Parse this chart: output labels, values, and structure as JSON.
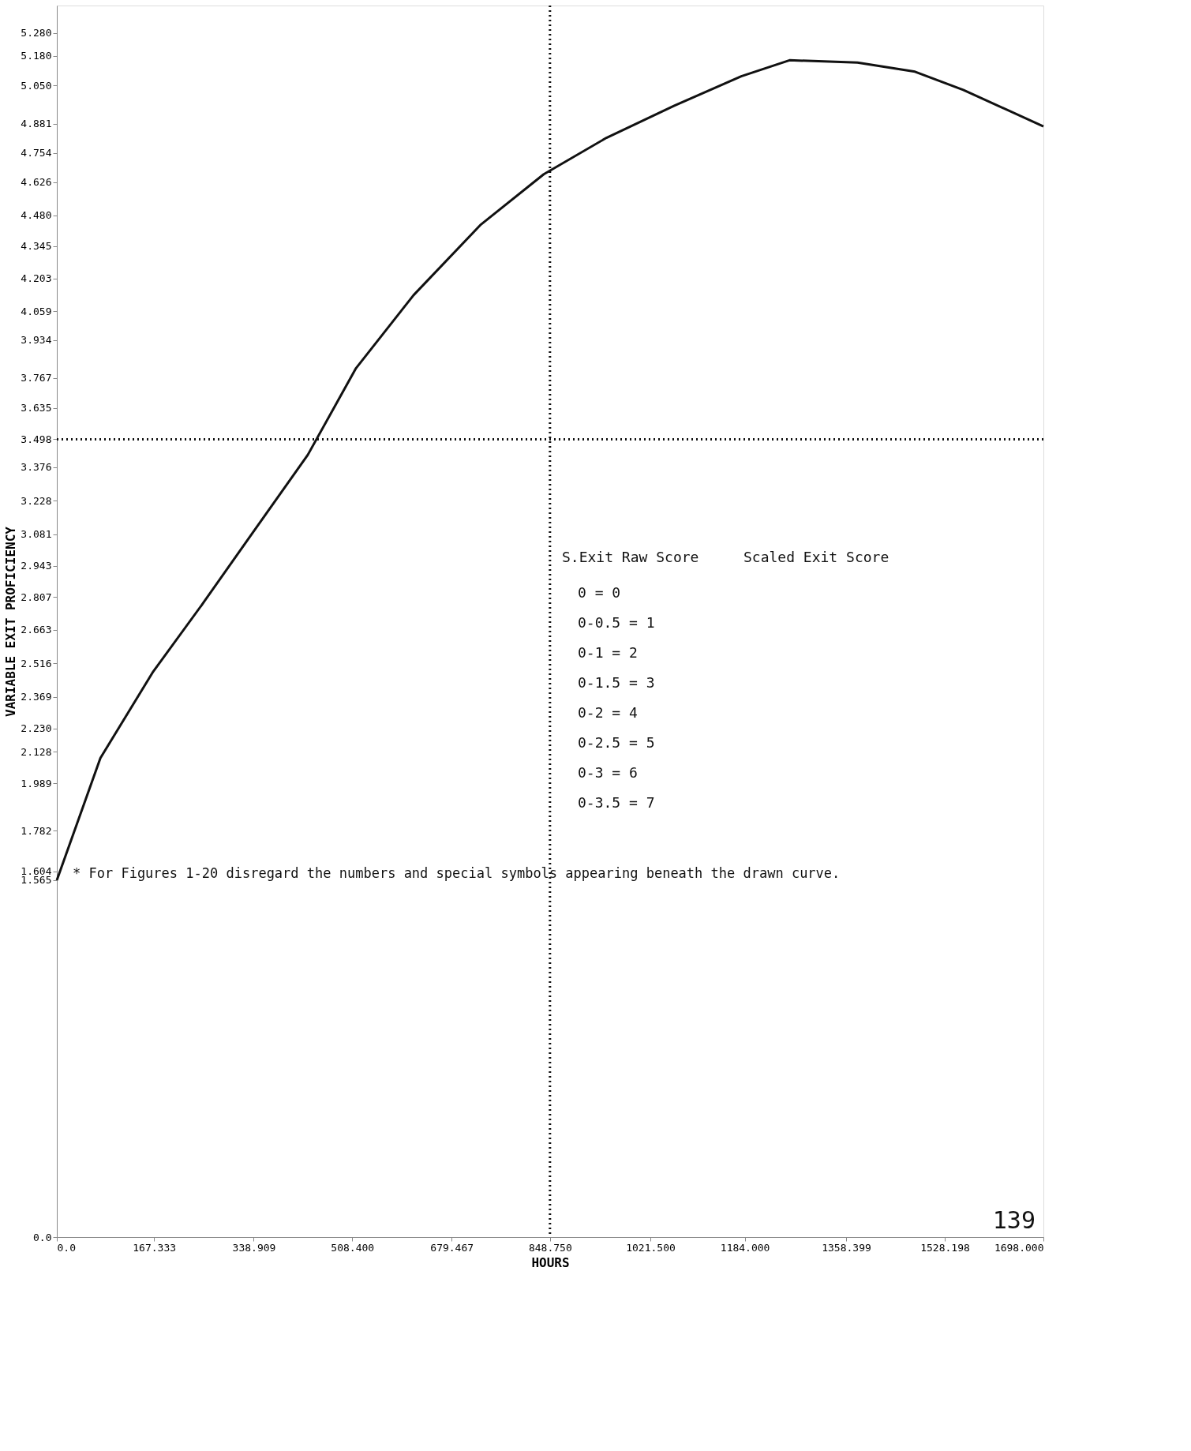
{
  "chart_data": {
    "type": "line",
    "xlabel": "HOURS",
    "ylabel": "VARIABLE EXIT PROFICIENCY",
    "x": [
      0,
      75,
      166,
      249,
      332,
      432,
      515,
      614,
      730,
      838,
      946,
      1062,
      1178,
      1261,
      1378,
      1477,
      1560,
      1698
    ],
    "series": [
      {
        "color": "#111111",
        "values": [
          1.565,
          2.1,
          2.48,
          2.77,
          3.07,
          3.43,
          3.81,
          4.13,
          4.44,
          4.66,
          4.82,
          4.96,
          5.09,
          5.16,
          5.15,
          5.11,
          5.03,
          4.87
        ]
      }
    ],
    "xlim": [
      0,
      1698
    ],
    "xticks": [
      {
        "value": 0,
        "label": "0.0"
      },
      {
        "value": 167.333,
        "label": "167.333"
      },
      {
        "value": 338.909,
        "label": "338.909"
      },
      {
        "value": 508.4,
        "label": "508.400"
      },
      {
        "value": 679.467,
        "label": "679.467"
      },
      {
        "value": 848.75,
        "label": "848.750"
      },
      {
        "value": 1021.5,
        "label": "1021.500"
      },
      {
        "value": 1184,
        "label": "1184.000"
      },
      {
        "value": 1358.399,
        "label": "1358.399"
      },
      {
        "value": 1528.198,
        "label": "1528.198"
      },
      {
        "value": 1698,
        "label": "1698.000"
      }
    ],
    "ylim": [
      0,
      5.4
    ],
    "yticks": [
      {
        "value": 0,
        "label": "0.0"
      },
      1.565,
      1.604,
      1.782,
      1.989,
      2.128,
      {
        "value": 2.23,
        "label": "2.230"
      },
      2.369,
      2.516,
      2.663,
      2.807,
      2.943,
      3.081,
      3.228,
      3.376,
      3.498,
      3.635,
      3.767,
      3.934,
      4.059,
      4.203,
      4.345,
      {
        "value": 4.48,
        "label": "4.480"
      },
      4.626,
      4.754,
      4.881,
      {
        "value": 5.05,
        "label": "5.050"
      },
      {
        "value": 5.18,
        "label": "5.180"
      },
      {
        "value": 5.28,
        "label": "5.280"
      }
    ],
    "ref_lines": [
      {
        "axis": "y",
        "value": 3.498,
        "line_style": "dotted"
      },
      {
        "axis": "x",
        "value": 848.75,
        "line_style": "dotted"
      }
    ],
    "grid": false,
    "marker": "none",
    "line_style": "solid",
    "annotations": [
      "S.Exit Raw Score",
      "Scaled Exit Score",
      "0 = 0",
      "0-0.5 = 1",
      "0-1 = 2",
      "0-1.5 = 3",
      "0-2 = 4",
      "0-2.5 = 5",
      "0-3 = 6",
      "0-3.5 = 7",
      "* For Figures 1-20 disregard the numbers and special symbols appearing beneath the drawn curve.",
      "139"
    ]
  }
}
